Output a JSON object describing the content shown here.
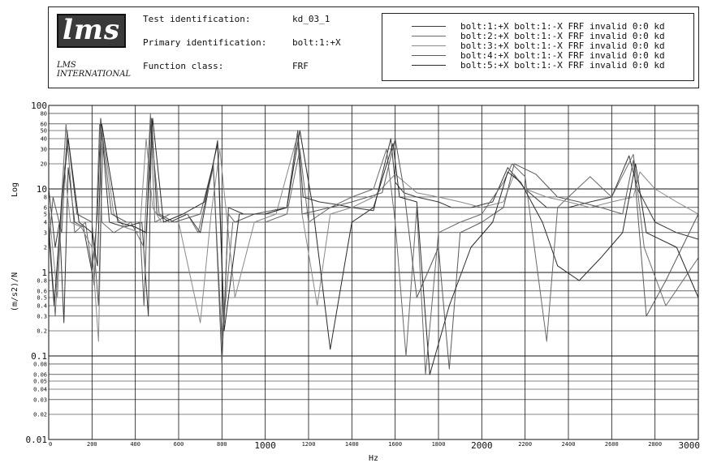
{
  "header": {
    "logo_text": "lms",
    "logo_subtitle_1": "LMS",
    "logo_subtitle_2": "INTERNATIONAL",
    "test_id_label": "Test identification:",
    "test_id_value": "kd_03_1",
    "primary_id_label": "Primary identification:",
    "primary_id_value": "bolt:1:+X",
    "function_class_label": "Function class:",
    "function_class_value": "FRF"
  },
  "legend": [
    "bolt:1:+X bolt:1:-X FRF invalid 0:0 kd",
    "bolt:2:+X bolt:1:-X FRF invalid 0:0 kd",
    "bolt:3:+X bolt:1:-X FRF invalid 0:0 kd",
    "bolt:4:+X bolt:1:-X FRF invalid 0:0 kd",
    "bolt:5:+X bolt:1:-X FRF invalid 0:0 kd"
  ],
  "colors": {
    "series": [
      "#3a3a3a",
      "#6a6a6a",
      "#8a8a8a",
      "#5a5a5a",
      "#2a2a2a"
    ],
    "grid": "#111111"
  },
  "chart_data": {
    "type": "line",
    "title": "",
    "xlabel": "Hz",
    "ylabel_top": "Log",
    "ylabel": "(m/s2)/N",
    "y_scale": "log",
    "xlim": [
      0,
      3000
    ],
    "ylim": [
      0.01,
      100
    ],
    "grid": true,
    "x_ticks": [
      {
        "value": 0,
        "label": "0",
        "big": false
      },
      {
        "value": 200,
        "label": "200",
        "big": false
      },
      {
        "value": 400,
        "label": "400",
        "big": false
      },
      {
        "value": 600,
        "label": "600",
        "big": false
      },
      {
        "value": 800,
        "label": "800",
        "big": false
      },
      {
        "value": 1000,
        "label": "1000",
        "big": true
      },
      {
        "value": 1200,
        "label": "1200",
        "big": false
      },
      {
        "value": 1400,
        "label": "1400",
        "big": false
      },
      {
        "value": 1600,
        "label": "1600",
        "big": false
      },
      {
        "value": 1800,
        "label": "1800",
        "big": false
      },
      {
        "value": 2000,
        "label": "2000",
        "big": true
      },
      {
        "value": 2200,
        "label": "2200",
        "big": false
      },
      {
        "value": 2400,
        "label": "2400",
        "big": false
      },
      {
        "value": 2600,
        "label": "2600",
        "big": false
      },
      {
        "value": 2800,
        "label": "2800",
        "big": false
      },
      {
        "value": 3000,
        "label": "3000",
        "big": true
      }
    ],
    "y_ticks": [
      {
        "value": 100,
        "label": "100",
        "big": true
      },
      {
        "value": 80,
        "label": "80",
        "big": false
      },
      {
        "value": 60,
        "label": "60",
        "big": false
      },
      {
        "value": 50,
        "label": "50",
        "big": false
      },
      {
        "value": 40,
        "label": "40",
        "big": false
      },
      {
        "value": 30,
        "label": "30",
        "big": false
      },
      {
        "value": 20,
        "label": "20",
        "big": false
      },
      {
        "value": 10,
        "label": "10",
        "big": true
      },
      {
        "value": 8,
        "label": "8",
        "big": false
      },
      {
        "value": 6,
        "label": "6",
        "big": false
      },
      {
        "value": 5,
        "label": "5",
        "big": false
      },
      {
        "value": 4,
        "label": "4",
        "big": false
      },
      {
        "value": 3,
        "label": "3",
        "big": false
      },
      {
        "value": 2,
        "label": "2",
        "big": false
      },
      {
        "value": 1,
        "label": "1",
        "big": true
      },
      {
        "value": 0.8,
        "label": "0.8",
        "big": false
      },
      {
        "value": 0.6,
        "label": "0.6",
        "big": false
      },
      {
        "value": 0.5,
        "label": "0.5",
        "big": false
      },
      {
        "value": 0.4,
        "label": "0.4",
        "big": false
      },
      {
        "value": 0.3,
        "label": "0.3",
        "big": false
      },
      {
        "value": 0.2,
        "label": "0.2",
        "big": false
      },
      {
        "value": 0.1,
        "label": "0.1",
        "big": true
      },
      {
        "value": 0.08,
        "label": "0.08",
        "big": false
      },
      {
        "value": 0.06,
        "label": "0.06",
        "big": false
      },
      {
        "value": 0.05,
        "label": "0.05",
        "big": false
      },
      {
        "value": 0.04,
        "label": "0.04",
        "big": false
      },
      {
        "value": 0.03,
        "label": "0.03",
        "big": false
      },
      {
        "value": 0.02,
        "label": "0.02",
        "big": false
      },
      {
        "value": 0.01,
        "label": "0.01",
        "big": true
      }
    ],
    "series": [
      {
        "name": "bolt:1:+X bolt:1:-X FRF invalid 0:0 kd",
        "x": [
          0,
          30,
          50,
          70,
          90,
          120,
          160,
          200,
          225,
          240,
          280,
          350,
          430,
          460,
          475,
          500,
          560,
          640,
          700,
          780,
          810,
          830,
          900,
          1000,
          1100,
          1150,
          1175,
          1250,
          1330,
          1400,
          1500,
          1580,
          1600,
          1640,
          1700,
          1800,
          1860,
          1950,
          2050,
          2120,
          2200,
          2300,
          2400,
          2500,
          2600,
          2680,
          2720,
          2800,
          2900,
          3000
        ],
        "y": [
          10,
          2,
          4,
          0.25,
          18,
          4,
          3.5,
          1,
          5,
          70,
          4,
          3.5,
          4,
          0.3,
          70,
          5,
          4,
          5,
          3,
          38,
          0.25,
          6,
          5,
          5,
          6,
          50,
          8,
          7,
          6.5,
          6,
          5.5,
          40,
          12,
          9,
          8,
          7,
          6,
          6,
          7,
          18,
          10,
          6,
          6,
          7,
          8,
          25,
          10,
          4,
          3,
          2.5
        ]
      },
      {
        "name": "bolt:2:+X bolt:1:-X FRF invalid 0:0 kd",
        "x": [
          0,
          30,
          55,
          80,
          120,
          170,
          210,
          235,
          245,
          300,
          380,
          440,
          470,
          490,
          560,
          640,
          690,
          760,
          800,
          850,
          1000,
          1100,
          1160,
          1200,
          1300,
          1400,
          1500,
          1560,
          1600,
          1650,
          1700,
          1740,
          1800,
          1900,
          2000,
          2100,
          2140,
          2200,
          2300,
          2350,
          2400,
          2500,
          2600,
          2700,
          2750,
          2850,
          3000
        ],
        "y": [
          4,
          0.3,
          5,
          60,
          3,
          4,
          0.7,
          60,
          4,
          3,
          4,
          2,
          80,
          4,
          5,
          5,
          3,
          18,
          0.15,
          4,
          4,
          5,
          30,
          4,
          6,
          8,
          10,
          30,
          4,
          0.1,
          6,
          0.06,
          3,
          4,
          5,
          12,
          20,
          14,
          0.15,
          6,
          8,
          14,
          8,
          26,
          2,
          0.4,
          1.5
        ]
      },
      {
        "name": "bolt:3:+X bolt:1:-X FRF invalid 0:0 kd",
        "x": [
          0,
          40,
          70,
          100,
          150,
          200,
          230,
          250,
          300,
          350,
          420,
          450,
          480,
          520,
          600,
          700,
          750,
          790,
          860,
          950,
          1050,
          1150,
          1170,
          1240,
          1300,
          1400,
          1500,
          1600,
          1700,
          1800,
          1900,
          2000,
          2100,
          2150,
          2200,
          2300,
          2400,
          2500,
          2600,
          2700,
          2730,
          2800,
          2900,
          3000
        ],
        "y": [
          6,
          0.5,
          20,
          4,
          3.5,
          2,
          0.15,
          50,
          5,
          3.5,
          3,
          40,
          6,
          4,
          4,
          0.25,
          5,
          30,
          0.5,
          4,
          5,
          45,
          5,
          0.4,
          5,
          6,
          8,
          15,
          9,
          8,
          7,
          6,
          7,
          15,
          10,
          8,
          7,
          6,
          7,
          8,
          16,
          10,
          7,
          5
        ]
      },
      {
        "name": "bolt:4:+X bolt:1:-X FRF invalid 0:0 kd",
        "x": [
          0,
          20,
          60,
          85,
          130,
          200,
          230,
          250,
          290,
          360,
          420,
          440,
          470,
          510,
          580,
          700,
          760,
          800,
          830,
          860,
          950,
          1100,
          1150,
          1170,
          1300,
          1400,
          1540,
          1600,
          1640,
          1700,
          1800,
          1850,
          1900,
          2000,
          2100,
          2150,
          2250,
          2350,
          2450,
          2550,
          2650,
          2700,
          2760,
          2850,
          3000
        ],
        "y": [
          2,
          8,
          3,
          50,
          5,
          4,
          0.4,
          40,
          5,
          4,
          4,
          0.4,
          60,
          5,
          4,
          5,
          20,
          0.08,
          5,
          4,
          5,
          6,
          48,
          5,
          6,
          7,
          9,
          40,
          10,
          0.5,
          2,
          0.07,
          3,
          4,
          6,
          20,
          15,
          8,
          7,
          6,
          5,
          22,
          0.3,
          0.8,
          5
        ]
      },
      {
        "name": "bolt:5:+X bolt:1:-X FRF invalid 0:0 kd",
        "x": [
          0,
          25,
          60,
          90,
          140,
          200,
          225,
          245,
          320,
          400,
          450,
          480,
          530,
          620,
          720,
          780,
          810,
          880,
          1000,
          1100,
          1160,
          1220,
          1300,
          1400,
          1500,
          1590,
          1620,
          1700,
          1760,
          1850,
          1950,
          2050,
          2120,
          2180,
          2280,
          2350,
          2450,
          2550,
          2650,
          2710,
          2760,
          2900,
          3000
        ],
        "y": [
          3,
          0.4,
          7,
          40,
          4,
          3,
          1.2,
          60,
          4,
          3.5,
          3,
          70,
          4,
          5,
          7,
          35,
          0.2,
          5,
          5,
          6,
          50,
          6,
          0.12,
          4,
          6,
          35,
          8,
          7,
          0.06,
          0.4,
          2,
          4,
          16,
          12,
          4,
          1.2,
          0.8,
          1.5,
          3,
          20,
          3,
          2,
          0.5
        ]
      }
    ]
  }
}
